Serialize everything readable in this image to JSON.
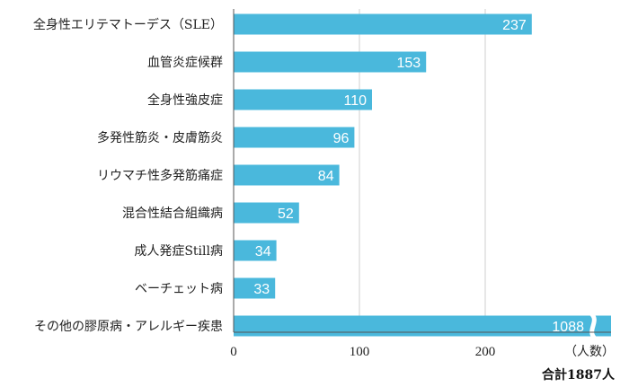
{
  "chart_data": {
    "type": "bar",
    "orientation": "horizontal",
    "categories": [
      "全身性エリテマトーデス（SLE）",
      "血管炎症候群",
      "全身性強皮症",
      "多発性筋炎・皮膚筋炎",
      "リウマチ性多発筋痛症",
      "混合性結合組織病",
      "成人発症Still病",
      "ベーチェット病",
      "その他の膠原病・アレルギー疾患"
    ],
    "values": [
      237,
      153,
      110,
      96,
      84,
      52,
      34,
      33,
      1088
    ],
    "value_labels": [
      "237",
      "153",
      "110",
      "96",
      "84",
      "52",
      "34",
      "33",
      "1088"
    ],
    "broken_bar_index": 8,
    "xlim": [
      0,
      300
    ],
    "xticks": [
      0,
      100,
      200
    ],
    "xtick_labels": [
      "0",
      "100",
      "200"
    ],
    "unit_label": "（人数）",
    "total_label": "合計1887人",
    "grid": true,
    "bar_color": "#4ab8dc",
    "grid_color": "#cfcfcf",
    "axis_color": "#555555"
  }
}
